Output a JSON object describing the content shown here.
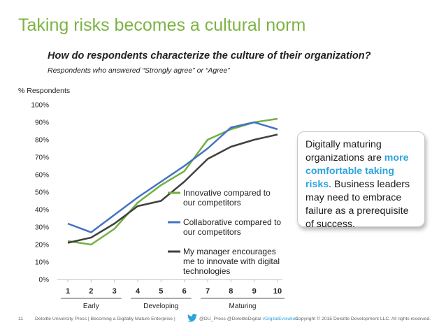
{
  "title": "Taking risks becomes a cultural norm",
  "question": "How do respondents characterize the culture of their organization?",
  "subquestion": "Respondents who answered “Strongly agree” or “Agree”",
  "callout": {
    "part1": "Digitally maturing organizations are ",
    "highlight": "more comfortable taking risks",
    "part2": ". Business leaders may need to embrace failure as a prerequisite of success."
  },
  "footer": {
    "page_number": "11",
    "credit": "Deloitte University Press | Becoming a Digitally Mature Enterprise |",
    "twitter_icon": "twitter-bird-icon",
    "handle": "@DU_Press @DeloitteDigital ",
    "hashtag": "#DigitalEvolution",
    "copyright": "Copyright © 2015 Deloitte Development LLC. All rights reserved."
  },
  "colors": {
    "title": "#7cb342",
    "highlight": "#2ea3dc",
    "innovative": "#72b043",
    "collaborative": "#4472c4",
    "manager": "#404040"
  },
  "chart_data": {
    "type": "line",
    "ylabel": "% Respondents",
    "x": [
      1,
      2,
      3,
      4,
      5,
      6,
      7,
      8,
      9,
      10
    ],
    "ylim": [
      0,
      100
    ],
    "yticks": [
      "0%",
      "10%",
      "20%",
      "30%",
      "40%",
      "50%",
      "60%",
      "70%",
      "80%",
      "90%",
      "100%"
    ],
    "grid": false,
    "legend_position": "inside, lower-right",
    "groups": [
      {
        "label": "Early",
        "from": 1,
        "to": 3
      },
      {
        "label": "Developing",
        "from": 4,
        "to": 6
      },
      {
        "label": "Maturing",
        "from": 7,
        "to": 10
      }
    ],
    "series": [
      {
        "name": "Innovative compared to our competitors",
        "color": "#72b043",
        "values": [
          22,
          20,
          29,
          44,
          54,
          62,
          80,
          86,
          90,
          92
        ]
      },
      {
        "name": "Collaborative compared to our competitors",
        "color": "#4472c4",
        "values": [
          32,
          27,
          37,
          47,
          56,
          65,
          75,
          87,
          90,
          86
        ]
      },
      {
        "name": "My manager encourages me to innovate with digital technologies",
        "color": "#404040",
        "values": [
          21,
          24,
          32,
          42,
          45,
          56,
          69,
          76,
          80,
          83
        ]
      }
    ]
  }
}
